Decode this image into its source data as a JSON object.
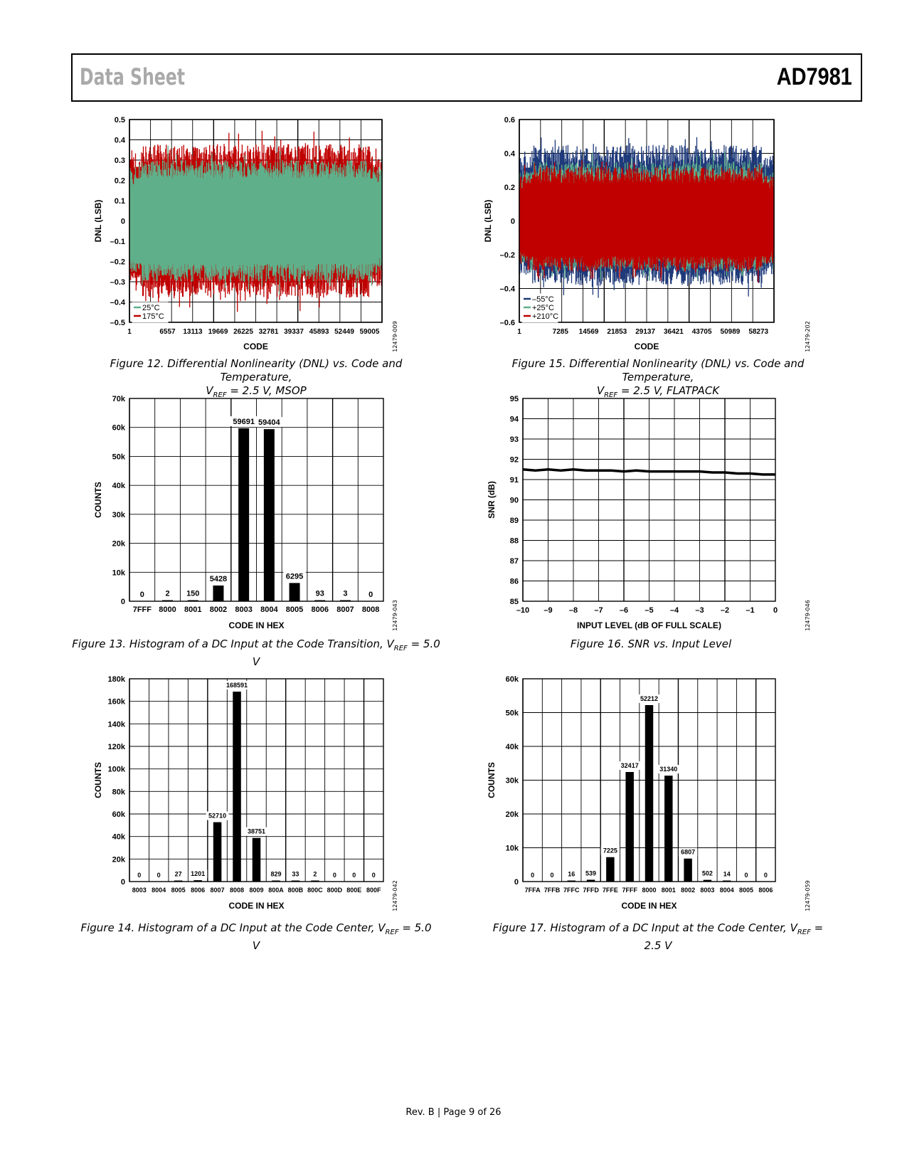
{
  "header": {
    "left": "Data Sheet",
    "right": "AD7981"
  },
  "footer": "Rev. B | Page 9 of 26",
  "figures": {
    "f12": {
      "caption1": "Figure 12. Differential Nonlinearity (DNL) vs. Code and Temperature,",
      "caption2_pre": "V",
      "caption2_sub": "REF",
      "caption2_post": " = 2.5 V, MSOP"
    },
    "f13": {
      "caption_pre": "Figure 13. Histogram of a DC Input at the Code Transition, V",
      "caption_sub": "REF",
      "caption_post": " = 5.0 V"
    },
    "f14": {
      "caption_pre": "Figure 14. Histogram of a DC Input at the Code Center, V",
      "caption_sub": "REF",
      "caption_post": " = 5.0 V"
    },
    "f15": {
      "caption1": "Figure 15. Differential Nonlinearity (DNL) vs. Code and Temperature,",
      "caption2_pre": "V",
      "caption2_sub": "REF",
      "caption2_post": " = 2.5 V, FLATPACK"
    },
    "f16": {
      "caption": "Figure 16. SNR vs. Input Level"
    },
    "f17": {
      "caption_pre": "Figure 17. Histogram of a DC Input at the Code Center, V",
      "caption_sub": "REF",
      "caption_post": " = 2.5 V"
    }
  },
  "chart_data": [
    {
      "id": "f12",
      "type": "line",
      "xlabel": "CODE",
      "ylabel": "DNL (LSB)",
      "ylim": [
        -0.5,
        0.5
      ],
      "yticks": [
        "0.5",
        "0.4",
        "0.3",
        "0.2",
        "0.1",
        "0",
        "–0.1",
        "–0.2",
        "–0.3",
        "–0.4",
        "–0.5"
      ],
      "xticks": [
        "1",
        "6557",
        "13113",
        "19669",
        "26225",
        "32781",
        "39337",
        "45893",
        "52449",
        "59005"
      ],
      "code": "12479-009",
      "series": [
        {
          "name": "25°C",
          "color": "#5fb08a",
          "envelope": [
            -0.3,
            0.3
          ]
        },
        {
          "name": "175°C",
          "color": "#c00000",
          "envelope": [
            -0.38,
            0.38
          ]
        }
      ]
    },
    {
      "id": "f15",
      "type": "line",
      "xlabel": "CODE",
      "ylabel": "DNL (LSB)",
      "ylim": [
        -0.6,
        0.6
      ],
      "yticks": [
        "0.6",
        "0.4",
        "0.2",
        "0",
        "–0.2",
        "–0.4",
        "–0.6"
      ],
      "xticks": [
        "1",
        "7285",
        "14569",
        "21853",
        "29137",
        "36421",
        "43705",
        "50989",
        "58273"
      ],
      "code": "12479-202",
      "series": [
        {
          "name": "–55°C",
          "color": "#1f3a7a",
          "envelope": [
            -0.38,
            0.45
          ]
        },
        {
          "name": "+25°C",
          "color": "#5fb08a",
          "envelope": [
            -0.3,
            0.35
          ]
        },
        {
          "name": "+210°C",
          "color": "#c00000",
          "envelope": [
            -0.3,
            0.32
          ]
        }
      ]
    },
    {
      "id": "f13",
      "type": "bar",
      "xlabel": "CODE IN HEX",
      "ylabel": "COUNTS",
      "ylim": [
        0,
        70000
      ],
      "yticks": [
        "70k",
        "60k",
        "50k",
        "40k",
        "30k",
        "20k",
        "10k",
        "0"
      ],
      "categories": [
        "7FFF",
        "8000",
        "8001",
        "8002",
        "8003",
        "8004",
        "8005",
        "8006",
        "8007",
        "8008"
      ],
      "values": [
        0,
        2,
        150,
        5428,
        59691,
        59404,
        6295,
        93,
        3,
        0
      ],
      "labels": [
        "0",
        "2",
        "150",
        "5428",
        "59691",
        "59404",
        "6295",
        "93",
        "3",
        "0"
      ],
      "code": "12479-043"
    },
    {
      "id": "f16",
      "type": "line",
      "xlabel": "INPUT LEVEL (dB OF FULL SCALE)",
      "ylabel": "SNR (dB)",
      "xlim": [
        -10,
        0
      ],
      "ylim": [
        85,
        95
      ],
      "xticks": [
        "–10",
        "–9",
        "–8",
        "–7",
        "–6",
        "–5",
        "–4",
        "–3",
        "–2",
        "–1",
        "0"
      ],
      "yticks": [
        "95",
        "94",
        "93",
        "92",
        "91",
        "90",
        "89",
        "88",
        "87",
        "86",
        "85"
      ],
      "x": [
        -10,
        -9.5,
        -9,
        -8.5,
        -8,
        -7.5,
        -7,
        -6.5,
        -6,
        -5.5,
        -5,
        -4.5,
        -4,
        -3.5,
        -3,
        -2.5,
        -2,
        -1.5,
        -1,
        -0.5,
        0
      ],
      "y": [
        91.5,
        91.45,
        91.5,
        91.45,
        91.5,
        91.45,
        91.45,
        91.45,
        91.4,
        91.45,
        91.4,
        91.4,
        91.4,
        91.4,
        91.4,
        91.35,
        91.35,
        91.3,
        91.3,
        91.25,
        91.25
      ],
      "code": "12479-046"
    },
    {
      "id": "f14",
      "type": "bar",
      "xlabel": "CODE IN HEX",
      "ylabel": "COUNTS",
      "ylim": [
        0,
        180000
      ],
      "yticks": [
        "180k",
        "160k",
        "140k",
        "120k",
        "100k",
        "80k",
        "60k",
        "40k",
        "20k",
        "0"
      ],
      "categories": [
        "8003",
        "8004",
        "8005",
        "8006",
        "8007",
        "8008",
        "8009",
        "800A",
        "800B",
        "800C",
        "800D",
        "800E",
        "800F"
      ],
      "values": [
        0,
        0,
        27,
        1201,
        52710,
        168591,
        38751,
        829,
        33,
        2,
        0,
        0,
        0
      ],
      "labels": [
        "0",
        "0",
        "27",
        "1201",
        "52710",
        "168591",
        "38751",
        "829",
        "33",
        "2",
        "0",
        "0",
        "0"
      ],
      "code": "12479-042"
    },
    {
      "id": "f17",
      "type": "bar",
      "xlabel": "CODE IN HEX",
      "ylabel": "COUNTS",
      "ylim": [
        0,
        60000
      ],
      "yticks": [
        "60k",
        "50k",
        "40k",
        "30k",
        "20k",
        "10k",
        "0"
      ],
      "categories": [
        "7FFA",
        "7FFB",
        "7FFC",
        "7FFD",
        "7FFE",
        "7FFF",
        "8000",
        "8001",
        "8002",
        "8003",
        "8004",
        "8005",
        "8006"
      ],
      "values": [
        0,
        0,
        16,
        539,
        7225,
        32417,
        52212,
        31340,
        6807,
        502,
        14,
        0,
        0
      ],
      "labels": [
        "0",
        "0",
        "16",
        "539",
        "7225",
        "32417",
        "52212",
        "31340",
        "6807",
        "502",
        "14",
        "0",
        "0"
      ],
      "code": "12479-059"
    }
  ]
}
